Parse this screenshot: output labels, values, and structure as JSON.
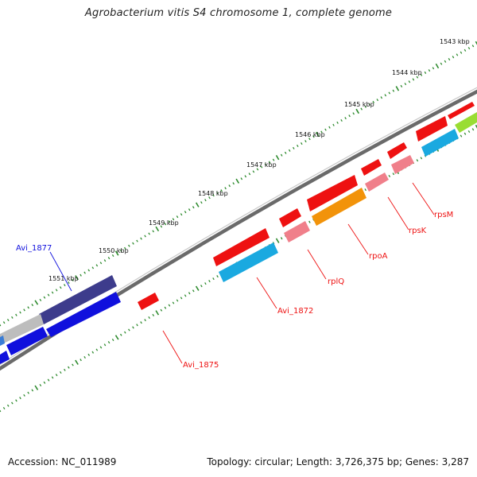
{
  "title": "Agrobacterium vitis S4 chromosome 1, complete genome",
  "footer": {
    "accession": "Accession: NC_011989",
    "stats": "Topology: circular; Length: 3,726,375 bp; Genes: 3,287"
  },
  "ruler": {
    "labels": [
      "1543 kbp",
      "1544 kbp",
      "1545 kbp",
      "1546 kbp",
      "1547 kbp",
      "1548 kbp",
      "1549 kbp",
      "1550 kbp",
      "1551 kbp"
    ]
  },
  "genes": [
    {
      "name": "Avi_1877",
      "color": "#1010dd"
    },
    {
      "name": "rpsM",
      "color": "#ee1111"
    },
    {
      "name": "rpsK",
      "color": "#ee1111"
    },
    {
      "name": "rpoA",
      "color": "#ee1111"
    },
    {
      "name": "rplQ",
      "color": "#ee1111"
    },
    {
      "name": "Avi_1872",
      "color": "#ee1111"
    },
    {
      "name": "Avi_1875",
      "color": "#ee1111"
    }
  ],
  "colors": {
    "backbone": "#7a7a7a",
    "ticks": "#2e8b2e",
    "red": "#ee1111",
    "pink": "#f07f8a",
    "cyan": "#1aa9e0",
    "orange": "#f2930a",
    "navy": "#3d3c8c",
    "blue": "#1010dd",
    "gray": "#bdbdbd",
    "lime": "#99dd33"
  }
}
